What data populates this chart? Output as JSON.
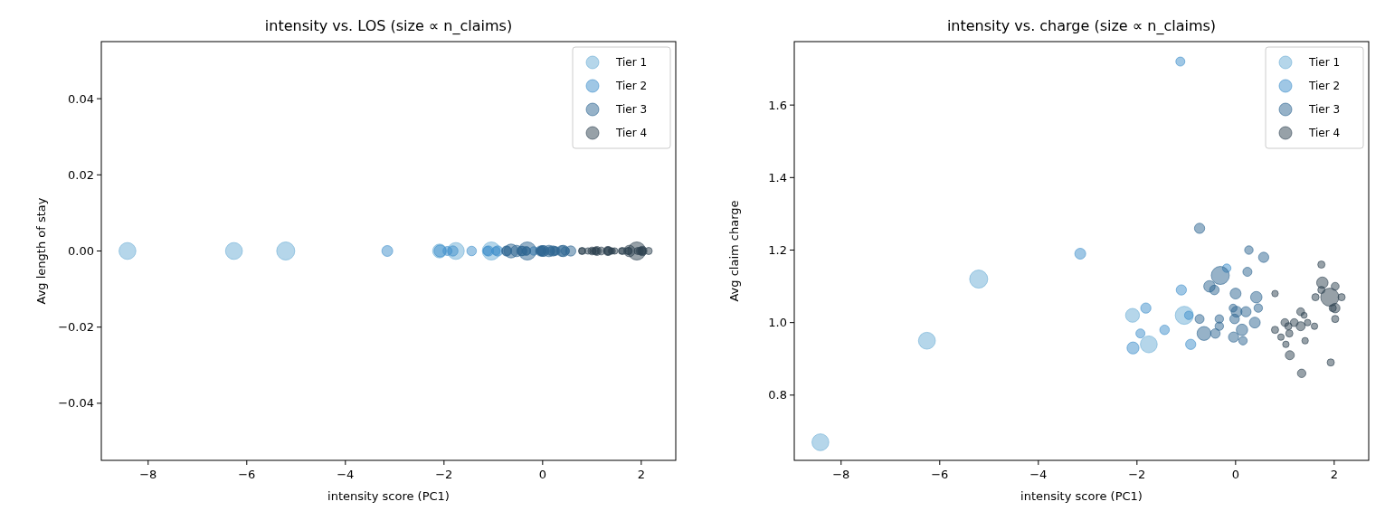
{
  "chart_data": [
    {
      "type": "bubble",
      "title": "intensity vs. LOS (size ∝ n_claims)",
      "xlabel": "intensity score (PC1)",
      "ylabel": "Avg length of stay",
      "xlim": [
        -8.95,
        2.7
      ],
      "xticks": [
        {
          "value": -8,
          "label": "−8"
        },
        {
          "value": -6,
          "label": "−6"
        },
        {
          "value": -4,
          "label": "−4"
        },
        {
          "value": -2,
          "label": "−2"
        },
        {
          "value": 0,
          "label": "0"
        },
        {
          "value": 2,
          "label": "2"
        }
      ],
      "ylim": [
        -0.055,
        0.055
      ],
      "yticks": [
        {
          "value": -0.04,
          "label": "−0.04"
        },
        {
          "value": -0.02,
          "label": "−0.02"
        },
        {
          "value": 0,
          "label": "0.00"
        },
        {
          "value": 0.02,
          "label": "0.02"
        },
        {
          "value": 0.04,
          "label": "0.04"
        }
      ],
      "legend": "top right",
      "marker": "circle",
      "grid": false,
      "series": [
        {
          "name": "Tier 1",
          "color": "#6baed6",
          "x": [
            -8.42,
            -6.26,
            -5.21,
            -2.09,
            -1.76,
            -1.04
          ],
          "values": [
            0,
            0,
            0,
            0,
            0,
            0
          ],
          "sizes": [
            0.87,
            0.87,
            1,
            0.59,
            0.87,
            1
          ]
        },
        {
          "name": "Tier 2",
          "color": "#3f8fcc",
          "x": [
            -3.15,
            -1.12,
            -1.82,
            -1.1,
            -0.95,
            -1.93,
            -1.44,
            -2.08,
            -0.91,
            -0.18
          ],
          "values": [
            0,
            0,
            0,
            0,
            0,
            0,
            0,
            0,
            0,
            0
          ],
          "sizes": [
            0.36,
            0.25,
            0.32,
            0.32,
            0.22,
            0.25,
            0.28,
            0.44,
            0.32,
            0.22
          ]
        },
        {
          "name": "Tier 3",
          "color": "#2e6591",
          "x": [
            -0.73,
            0.27,
            0.57,
            -0.31,
            0.24,
            -0.53,
            -0.43,
            0.0,
            0.42,
            0.46,
            -0.73,
            -0.33,
            -0.05,
            0.02,
            0.21,
            -0.02,
            -0.33,
            0.13,
            0.39,
            -0.64,
            -0.41,
            -0.04,
            0.15
          ],
          "values": [
            0,
            0,
            0,
            0,
            0,
            0,
            0,
            0,
            0,
            0,
            0,
            0,
            0,
            0,
            0,
            0,
            0,
            0,
            0,
            0,
            0,
            0,
            0
          ],
          "sizes": [
            0.32,
            0.22,
            0.32,
            1,
            0.25,
            0.4,
            0.28,
            0.36,
            0.4,
            0.22,
            0.25,
            0.22,
            0.19,
            0.36,
            0.32,
            0.28,
            0.22,
            0.4,
            0.36,
            0.59,
            0.28,
            0.32,
            0.22
          ]
        },
        {
          "name": "Tier 4",
          "color": "#2f4351",
          "x": [
            1.74,
            0.8,
            1.76,
            2.02,
            1.74,
            1.91,
            1.62,
            2.15,
            2.02,
            1.97,
            2.02,
            0.8,
            1.0,
            1.32,
            1.39,
            1.32,
            1.46,
            1.6,
            1.19,
            1.07,
            0.92,
            1.09,
            1.02,
            1.41,
            1.1,
            1.93,
            1.34
          ],
          "values": [
            0,
            0,
            0,
            0,
            0,
            0,
            0,
            0,
            0,
            0,
            0,
            0,
            0,
            0,
            0,
            0,
            0,
            0,
            0,
            0,
            0,
            0,
            0,
            0,
            0,
            0,
            0
          ],
          "sizes": [
            0.16,
            0.13,
            0.4,
            0.19,
            0.16,
            1,
            0.16,
            0.16,
            0.28,
            0.16,
            0.16,
            0.16,
            0.19,
            0.19,
            0.11,
            0.25,
            0.13,
            0.13,
            0.19,
            0.16,
            0.13,
            0.16,
            0.13,
            0.13,
            0.25,
            0.16,
            0.22
          ]
        }
      ]
    },
    {
      "type": "bubble",
      "title": "intensity vs. charge (size ∝ n_claims)",
      "xlabel": "intensity score (PC1)",
      "ylabel": "Avg claim charge",
      "xlim": [
        -8.95,
        2.7
      ],
      "xticks": [
        {
          "value": -8,
          "label": "−8"
        },
        {
          "value": -6,
          "label": "−6"
        },
        {
          "value": -4,
          "label": "−4"
        },
        {
          "value": -2,
          "label": "−2"
        },
        0,
        2
      ],
      "ylim": [
        0.62,
        1.775
      ],
      "yticks": [
        0.8,
        {
          "value": 1.0,
          "label": "1.0"
        },
        1.2,
        1.4,
        1.6
      ],
      "legend": "top right",
      "marker": "circle",
      "grid": false,
      "series": [
        {
          "name": "Tier 1",
          "color": "#6baed6",
          "x": [
            -8.42,
            -6.26,
            -5.21,
            -2.09,
            -1.76,
            -1.04
          ],
          "values": [
            0.67,
            0.95,
            1.12,
            1.02,
            0.94,
            1.02
          ],
          "sizes": [
            0.87,
            0.87,
            1,
            0.59,
            0.87,
            1
          ]
        },
        {
          "name": "Tier 2",
          "color": "#3f8fcc",
          "x": [
            -3.15,
            -1.12,
            -1.82,
            -1.1,
            -0.95,
            -1.93,
            -1.44,
            -2.08,
            -0.91,
            -0.18
          ],
          "values": [
            1.19,
            1.72,
            1.04,
            1.09,
            1.02,
            0.97,
            0.98,
            0.93,
            0.94,
            1.15
          ],
          "sizes": [
            0.36,
            0.25,
            0.32,
            0.32,
            0.22,
            0.25,
            0.28,
            0.44,
            0.32,
            0.22
          ]
        },
        {
          "name": "Tier 3",
          "color": "#2e6591",
          "x": [
            -0.73,
            0.27,
            0.57,
            -0.31,
            0.24,
            -0.53,
            -0.43,
            0.0,
            0.42,
            0.46,
            -0.73,
            -0.33,
            -0.05,
            0.02,
            0.21,
            -0.02,
            -0.33,
            0.13,
            0.39,
            -0.64,
            -0.41,
            -0.04,
            0.15
          ],
          "values": [
            1.26,
            1.2,
            1.18,
            1.13,
            1.14,
            1.1,
            1.09,
            1.08,
            1.07,
            1.04,
            1.01,
            1.01,
            1.04,
            1.03,
            1.03,
            1.01,
            0.99,
            0.98,
            1.0,
            0.97,
            0.97,
            0.96,
            0.95
          ],
          "sizes": [
            0.32,
            0.22,
            0.32,
            1,
            0.25,
            0.4,
            0.28,
            0.36,
            0.4,
            0.22,
            0.25,
            0.22,
            0.19,
            0.36,
            0.32,
            0.28,
            0.22,
            0.4,
            0.36,
            0.59,
            0.28,
            0.32,
            0.22
          ]
        },
        {
          "name": "Tier 4",
          "color": "#2f4351",
          "x": [
            1.74,
            0.8,
            1.76,
            2.02,
            1.74,
            1.91,
            1.62,
            2.15,
            2.02,
            1.97,
            2.02,
            0.8,
            1.0,
            1.32,
            1.39,
            1.32,
            1.46,
            1.6,
            1.19,
            1.07,
            0.92,
            1.09,
            1.02,
            1.41,
            1.1,
            1.93,
            1.34
          ],
          "values": [
            1.16,
            1.08,
            1.11,
            1.1,
            1.09,
            1.07,
            1.07,
            1.07,
            1.04,
            1.04,
            1.01,
            0.98,
            1.0,
            1.03,
            1.02,
            0.99,
            1.0,
            0.99,
            1.0,
            0.99,
            0.96,
            0.97,
            0.94,
            0.95,
            0.91,
            0.89,
            0.86
          ],
          "sizes": [
            0.16,
            0.13,
            0.4,
            0.19,
            0.16,
            1,
            0.16,
            0.16,
            0.28,
            0.16,
            0.16,
            0.16,
            0.19,
            0.19,
            0.11,
            0.25,
            0.13,
            0.13,
            0.19,
            0.16,
            0.13,
            0.16,
            0.13,
            0.13,
            0.25,
            0.16,
            0.22
          ]
        }
      ]
    }
  ]
}
